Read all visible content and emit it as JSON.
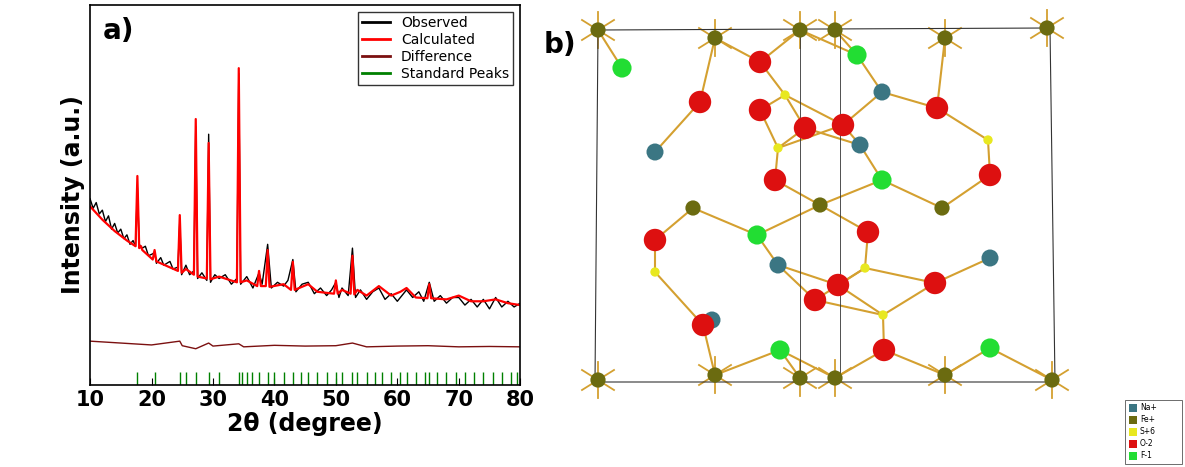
{
  "chart_data": {
    "type": "line",
    "panel_label": "a)",
    "x_label": "2θ (degree)",
    "y_label": "Intensity (a.u.)",
    "xlim": [
      10,
      80
    ],
    "xticks": [
      10,
      20,
      30,
      40,
      50,
      60,
      70,
      80
    ],
    "ylim": [
      0,
      100
    ],
    "tick_labels": "x",
    "legend": "upper right",
    "series": [
      {
        "name": "Observed",
        "color": "#000000",
        "type": "line",
        "x": [
          10,
          10.5,
          11,
          11.5,
          12,
          12.5,
          13,
          13.5,
          14,
          14.5,
          15,
          15.5,
          16,
          16.5,
          17,
          17.4,
          17.7,
          18.0,
          18.5,
          19,
          19.5,
          20.2,
          20.5,
          20.8,
          21.5,
          22,
          23,
          23.5,
          24.3,
          24.6,
          24.9,
          25.6,
          26.2,
          26.9,
          27.2,
          27.5,
          28.2,
          29.0,
          29.3,
          29.6,
          30.3,
          31,
          32,
          33,
          33.9,
          34.2,
          34.5,
          35.5,
          36.5,
          37.5,
          38,
          38.9,
          39.5,
          40.5,
          41.5,
          42.2,
          43.0,
          43.5,
          44.5,
          45.5,
          46.5,
          47.5,
          48.5,
          49.3,
          50.0,
          50.5,
          51,
          52,
          52.7,
          53.2,
          54,
          55,
          56,
          57,
          58,
          59,
          60,
          61.5,
          62.5,
          63.5,
          64.3,
          65.2,
          66,
          67,
          68,
          69,
          70,
          71,
          72,
          73,
          74,
          75,
          76,
          77,
          78,
          79,
          80
        ],
        "values": [
          49,
          46.5,
          48,
          45,
          46,
          43,
          44.5,
          41,
          42.5,
          40,
          41,
          38.5,
          39.5,
          37,
          38,
          36.5,
          52,
          37,
          36,
          36.5,
          34,
          34.5,
          35,
          32,
          33.5,
          31.5,
          32.5,
          30.5,
          31,
          43,
          29,
          31.5,
          29,
          30,
          68,
          28,
          29.5,
          27.5,
          66,
          27,
          29,
          28,
          29,
          26.5,
          28,
          82,
          26.5,
          28.5,
          25.5,
          29.5,
          26.5,
          37,
          25.5,
          27,
          26,
          27.5,
          33,
          24.5,
          26.5,
          27,
          24,
          25.5,
          23.5,
          25,
          27,
          23,
          25.5,
          23.5,
          36,
          23,
          25,
          22.5,
          24.5,
          25.5,
          22.5,
          24,
          22,
          25,
          23,
          24.5,
          22,
          27,
          22,
          23.5,
          21.5,
          23,
          23,
          21,
          22.5,
          20.5,
          22.5,
          20,
          23,
          20.5,
          22,
          20.5,
          21.5
        ]
      },
      {
        "name": "Calculated",
        "color": "#ff0000",
        "type": "line",
        "x": [
          10,
          12,
          14,
          16,
          17.4,
          17.7,
          18.0,
          18.3,
          18.5,
          20.2,
          20.5,
          20.8,
          24.3,
          24.6,
          24.9,
          25.6,
          26.9,
          27.2,
          27.5,
          29.0,
          29.3,
          29.6,
          31,
          33.9,
          34.2,
          34.5,
          35.5,
          37.2,
          37.5,
          37.8,
          38.6,
          38.9,
          39.2,
          41.5,
          42.7,
          43.0,
          43.3,
          45.5,
          47,
          49.7,
          50.0,
          50.3,
          51,
          52.4,
          52.7,
          53.0,
          53.5,
          55,
          57,
          59,
          60.5,
          61.5,
          63,
          64.9,
          65.2,
          65.5,
          68,
          70,
          72,
          74,
          76,
          78,
          80
        ],
        "values": [
          47,
          43.5,
          40.5,
          38,
          36.5,
          55,
          36,
          36.5,
          35.5,
          33,
          35.5,
          32.5,
          30,
          44.7,
          29.5,
          30.5,
          29,
          70,
          28.5,
          28,
          63.7,
          27.8,
          28.5,
          27,
          83.4,
          27,
          27.5,
          26,
          30,
          26,
          26,
          35.5,
          25.8,
          26.5,
          25,
          32.4,
          25,
          26.5,
          24.5,
          24,
          27.5,
          24,
          25,
          24,
          34,
          23.8,
          25,
          23.5,
          26,
          23.5,
          24.5,
          25.5,
          23,
          22.8,
          26.5,
          22.8,
          22.5,
          23.5,
          22,
          22,
          22.5,
          21.5,
          21
        ]
      },
      {
        "name": "Difference",
        "color": "#7b1010",
        "type": "line",
        "x": [
          10,
          15,
          20,
          24.6,
          25,
          27.2,
          29.3,
          30,
          34.2,
          35,
          40,
          45,
          50,
          52.7,
          55,
          60,
          65,
          70,
          75,
          80
        ],
        "values": [
          11.5,
          11,
          10.5,
          11.5,
          10.3,
          9.5,
          11,
          10.2,
          10.8,
          10,
          10.4,
          10.2,
          10.3,
          11,
          10,
          10.2,
          10.3,
          10,
          10.1,
          10
        ]
      },
      {
        "name": "Standard Peaks",
        "color": "#008000",
        "type": "vlines",
        "x": [
          17.7,
          20.5,
          24.6,
          25.6,
          27.2,
          29.3,
          31.0,
          34.2,
          34.7,
          35.5,
          36.3,
          37.5,
          38.9,
          40.0,
          41.5,
          43.0,
          44.3,
          45.5,
          47.0,
          48.5,
          50.0,
          51.0,
          52.7,
          53.5,
          55.0,
          56.3,
          57.5,
          59.0,
          60.5,
          61.5,
          63.0,
          64.5,
          65.2,
          66.5,
          68.0,
          69.5,
          71.0,
          72.5,
          74.0,
          75.5,
          77.0,
          78.5,
          79.5
        ],
        "values": [
          3.5,
          3.5,
          3.5,
          3.5,
          3.5,
          3.5,
          3.5,
          3.5,
          3.5,
          3.5,
          3.5,
          3.5,
          3.5,
          3.5,
          3.5,
          3.5,
          3.5,
          3.5,
          3.5,
          3.5,
          3.5,
          3.5,
          3.5,
          3.5,
          3.5,
          3.5,
          3.5,
          3.5,
          3.5,
          3.5,
          3.5,
          3.5,
          3.5,
          3.5,
          3.5,
          3.5,
          3.5,
          3.5,
          3.5,
          3.5,
          3.5,
          3.5,
          3.5
        ]
      }
    ]
  },
  "diagram": {
    "panel_label": "b)",
    "legend": [
      {
        "label": "Na+",
        "color": "#3b7683"
      },
      {
        "label": "Fe+",
        "color": "#6b6b10"
      },
      {
        "label": "S+6",
        "color": "#e8e820"
      },
      {
        "label": "O-2",
        "color": "#dd1010"
      },
      {
        "label": "F-1",
        "color": "#22dd33"
      }
    ]
  }
}
